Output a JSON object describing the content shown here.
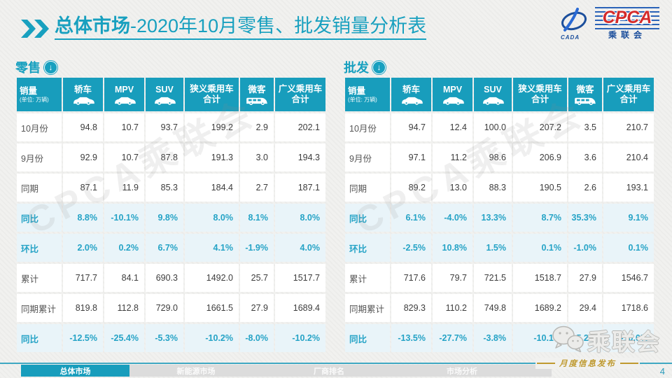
{
  "title": {
    "highlight": "总体市场",
    "rest": "-2020年10月零售、批发销量分析表"
  },
  "logo": {
    "acronym": "CPCA",
    "cada": "CADA",
    "org_cn": "乘联会"
  },
  "unit_note": "(单位: 万辆)",
  "table_columns": [
    {
      "label": "销量",
      "icon": ""
    },
    {
      "label": "轿车",
      "icon": "car"
    },
    {
      "label": "MPV",
      "icon": "car"
    },
    {
      "label": "SUV",
      "icon": "car"
    },
    {
      "label": "狭义乘用车 合计",
      "icon": ""
    },
    {
      "label": "微客",
      "icon": "van"
    },
    {
      "label": "广义乘用车 合计",
      "icon": ""
    }
  ],
  "tables": [
    {
      "name": "零售",
      "rows": [
        {
          "label": "10月份",
          "values": [
            "94.8",
            "10.7",
            "93.7",
            "199.2",
            "2.9",
            "202.1"
          ],
          "highlight": false
        },
        {
          "label": "9月份",
          "values": [
            "92.9",
            "10.7",
            "87.8",
            "191.3",
            "3.0",
            "194.3"
          ],
          "highlight": false
        },
        {
          "label": "同期",
          "values": [
            "87.1",
            "11.9",
            "85.3",
            "184.4",
            "2.7",
            "187.1"
          ],
          "highlight": false
        },
        {
          "label": "同比",
          "values": [
            "8.8%",
            "-10.1%",
            "9.8%",
            "8.0%",
            "8.1%",
            "8.0%"
          ],
          "highlight": true
        },
        {
          "label": "环比",
          "values": [
            "2.0%",
            "0.2%",
            "6.7%",
            "4.1%",
            "-1.9%",
            "4.0%"
          ],
          "highlight": true
        },
        {
          "label": "累计",
          "values": [
            "717.7",
            "84.1",
            "690.3",
            "1492.0",
            "25.7",
            "1517.7"
          ],
          "highlight": false
        },
        {
          "label": "同期累计",
          "values": [
            "819.8",
            "112.8",
            "729.0",
            "1661.5",
            "27.9",
            "1689.4"
          ],
          "highlight": false
        },
        {
          "label": "同比",
          "values": [
            "-12.5%",
            "-25.4%",
            "-5.3%",
            "-10.2%",
            "-8.0%",
            "-10.2%"
          ],
          "highlight": true
        }
      ]
    },
    {
      "name": "批发",
      "rows": [
        {
          "label": "10月份",
          "values": [
            "94.7",
            "12.4",
            "100.0",
            "207.2",
            "3.5",
            "210.7"
          ],
          "highlight": false
        },
        {
          "label": "9月份",
          "values": [
            "97.1",
            "11.2",
            "98.6",
            "206.9",
            "3.6",
            "210.4"
          ],
          "highlight": false
        },
        {
          "label": "同期",
          "values": [
            "89.2",
            "13.0",
            "88.3",
            "190.5",
            "2.6",
            "193.1"
          ],
          "highlight": false
        },
        {
          "label": "同比",
          "values": [
            "6.1%",
            "-4.0%",
            "13.3%",
            "8.7%",
            "35.3%",
            "9.1%"
          ],
          "highlight": true
        },
        {
          "label": "环比",
          "values": [
            "-2.5%",
            "10.8%",
            "1.5%",
            "0.1%",
            "-1.0%",
            "0.1%"
          ],
          "highlight": true
        },
        {
          "label": "累计",
          "values": [
            "717.6",
            "79.7",
            "721.5",
            "1518.7",
            "27.9",
            "1546.7"
          ],
          "highlight": false
        },
        {
          "label": "同期累计",
          "values": [
            "829.3",
            "110.2",
            "749.8",
            "1689.2",
            "29.4",
            "1718.6"
          ],
          "highlight": false
        },
        {
          "label": "同比",
          "values": [
            "-13.5%",
            "-27.7%",
            "-3.8%",
            "-10.1%",
            "-5.2%",
            "-10.0%"
          ],
          "highlight": true
        }
      ]
    }
  ],
  "watermark_text": "CPCA乘联会",
  "footer": {
    "tabs": [
      "总体市场",
      "新能源市场",
      "厂商排名",
      "市场分析"
    ],
    "active_tab": "总体市场",
    "release_note": "月度信息发布",
    "wechat_label": "乘联会",
    "page_number": "4"
  },
  "colors": {
    "accent_teal": "#189DBC",
    "highlight_row_bg": "#E9F4F9",
    "highlight_text": "#25A3C6",
    "gold": "#BF9A30",
    "logo_blue": "#1C4F9C",
    "logo_red": "#D42B2B"
  }
}
